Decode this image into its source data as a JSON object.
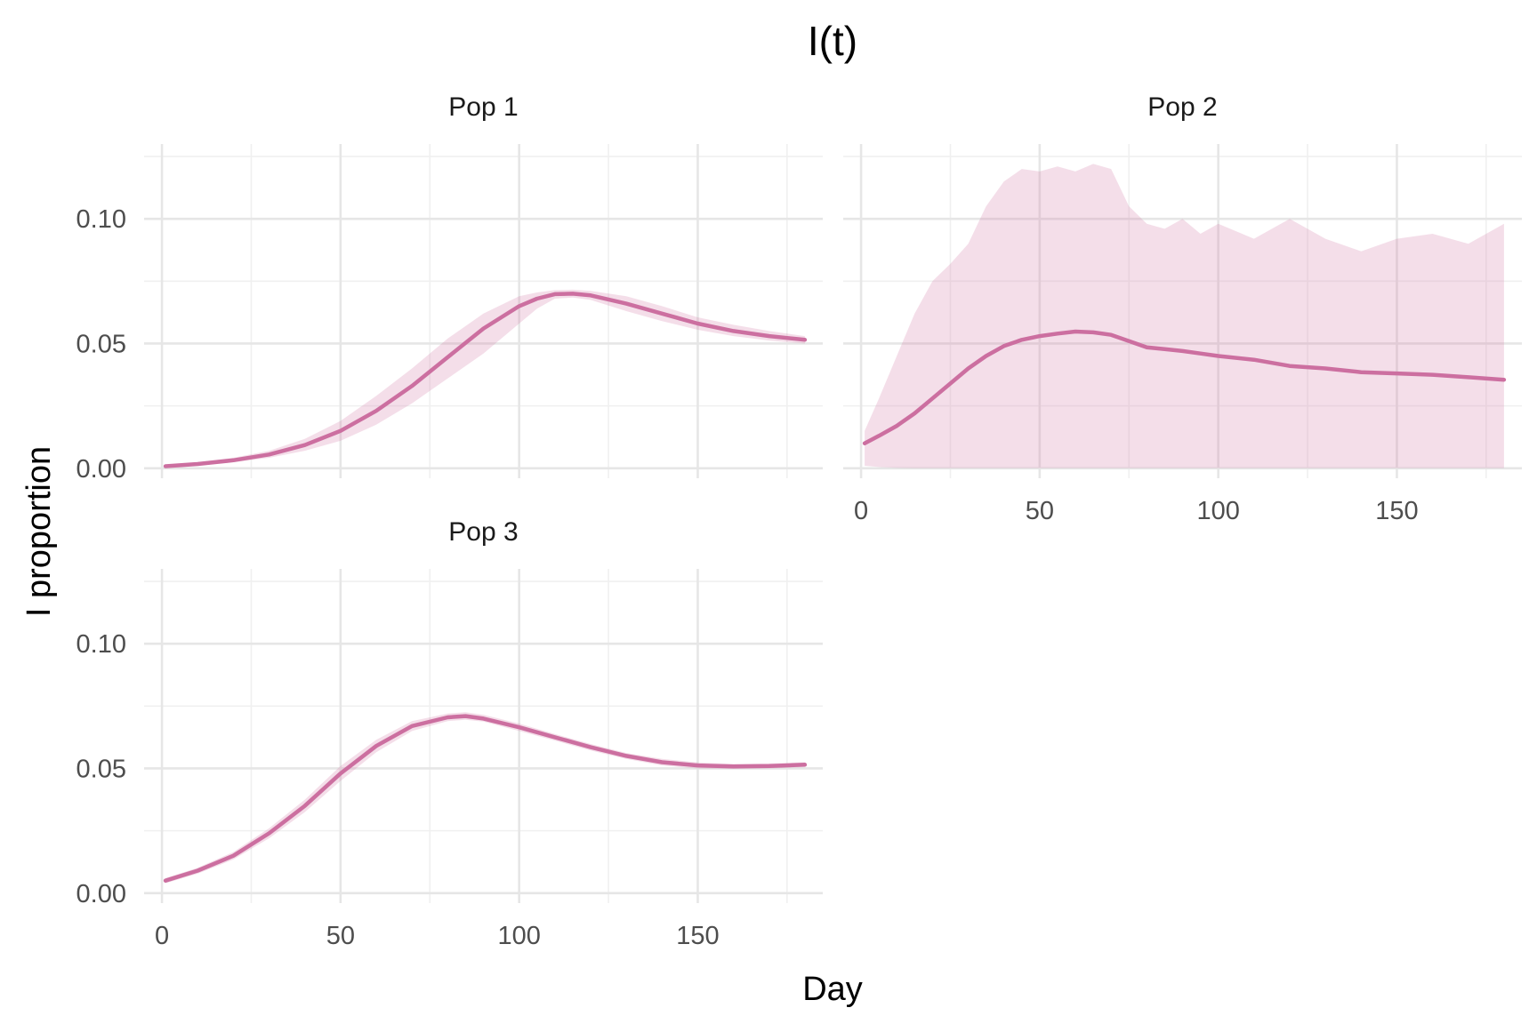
{
  "chart_data": {
    "type": "line",
    "title": "I(t)",
    "xlabel": "Day",
    "ylabel": "I proportion",
    "xlim": [
      -5,
      185
    ],
    "ylim": [
      -0.004,
      0.13
    ],
    "x_ticks": [
      0,
      50,
      100,
      150
    ],
    "x_tick_labels": [
      "0",
      "50",
      "100",
      "150"
    ],
    "y_ticks": [
      0,
      0.05,
      0.1
    ],
    "y_tick_labels": [
      "0.00",
      "0.05",
      "0.10"
    ],
    "grid": true,
    "colors": {
      "line": "#cc6fa0",
      "band": "#d27aa8"
    },
    "panels": [
      {
        "name": "Pop 1",
        "x": [
          1,
          10,
          20,
          30,
          40,
          50,
          60,
          70,
          80,
          90,
          100,
          105,
          110,
          115,
          120,
          130,
          140,
          150,
          160,
          170,
          180
        ],
        "mean": [
          0.0008,
          0.0017,
          0.0032,
          0.0055,
          0.0093,
          0.015,
          0.023,
          0.033,
          0.0445,
          0.056,
          0.065,
          0.068,
          0.0698,
          0.07,
          0.0693,
          0.066,
          0.062,
          0.058,
          0.055,
          0.053,
          0.0515
        ],
        "lower": [
          0.0005,
          0.0012,
          0.0024,
          0.0042,
          0.007,
          0.011,
          0.0175,
          0.026,
          0.036,
          0.046,
          0.058,
          0.064,
          0.068,
          0.0684,
          0.0675,
          0.063,
          0.059,
          0.0555,
          0.053,
          0.0512,
          0.05
        ],
        "upper": [
          0.0012,
          0.0024,
          0.0042,
          0.007,
          0.0118,
          0.019,
          0.029,
          0.04,
          0.052,
          0.062,
          0.069,
          0.0705,
          0.0714,
          0.0716,
          0.0711,
          0.069,
          0.065,
          0.0605,
          0.0575,
          0.055,
          0.053
        ]
      },
      {
        "name": "Pop 2",
        "x": [
          1,
          5,
          10,
          15,
          20,
          25,
          30,
          35,
          40,
          45,
          50,
          55,
          60,
          65,
          70,
          75,
          80,
          85,
          90,
          95,
          100,
          110,
          120,
          130,
          140,
          150,
          160,
          170,
          180
        ],
        "mean": [
          0.01,
          0.013,
          0.017,
          0.022,
          0.028,
          0.034,
          0.04,
          0.045,
          0.049,
          0.0515,
          0.053,
          0.054,
          0.0548,
          0.0545,
          0.0535,
          0.051,
          0.0485,
          0.0478,
          0.047,
          0.046,
          0.045,
          0.0435,
          0.041,
          0.04,
          0.0385,
          0.038,
          0.0375,
          0.0365,
          0.0355
        ],
        "lower": [
          0.001,
          0.0005,
          0.0002,
          0.0001,
          0.0001,
          0.0001,
          0.0001,
          0.0001,
          0.0001,
          0.0001,
          0.0001,
          0.0001,
          0.0001,
          0.0001,
          0.0001,
          0.0001,
          0.0001,
          0.0001,
          0.0001,
          0.0001,
          0.0001,
          0.0001,
          0.0001,
          0.0001,
          0.0001,
          0.0001,
          0.0001,
          0.0001,
          0.0001
        ],
        "upper": [
          0.015,
          0.028,
          0.045,
          0.062,
          0.075,
          0.082,
          0.09,
          0.105,
          0.115,
          0.12,
          0.119,
          0.121,
          0.119,
          0.122,
          0.12,
          0.105,
          0.098,
          0.096,
          0.1,
          0.094,
          0.098,
          0.092,
          0.1,
          0.092,
          0.087,
          0.092,
          0.094,
          0.09,
          0.098
        ]
      },
      {
        "name": "Pop 3",
        "x": [
          1,
          10,
          20,
          30,
          40,
          50,
          60,
          70,
          80,
          85,
          90,
          100,
          110,
          120,
          130,
          140,
          150,
          160,
          170,
          180
        ],
        "mean": [
          0.005,
          0.009,
          0.015,
          0.024,
          0.035,
          0.048,
          0.059,
          0.067,
          0.0705,
          0.071,
          0.07,
          0.0665,
          0.0625,
          0.0585,
          0.055,
          0.0525,
          0.0512,
          0.0508,
          0.051,
          0.0515
        ],
        "lower": [
          0.004,
          0.0078,
          0.0135,
          0.022,
          0.0325,
          0.045,
          0.0565,
          0.065,
          0.069,
          0.0695,
          0.0688,
          0.065,
          0.0612,
          0.0572,
          0.0538,
          0.0512,
          0.05,
          0.0498,
          0.05,
          0.0505
        ],
        "upper": [
          0.006,
          0.0102,
          0.0165,
          0.026,
          0.0375,
          0.051,
          0.0615,
          0.069,
          0.072,
          0.0725,
          0.0715,
          0.068,
          0.0638,
          0.0598,
          0.0562,
          0.0538,
          0.0524,
          0.0518,
          0.052,
          0.0525
        ]
      }
    ]
  }
}
